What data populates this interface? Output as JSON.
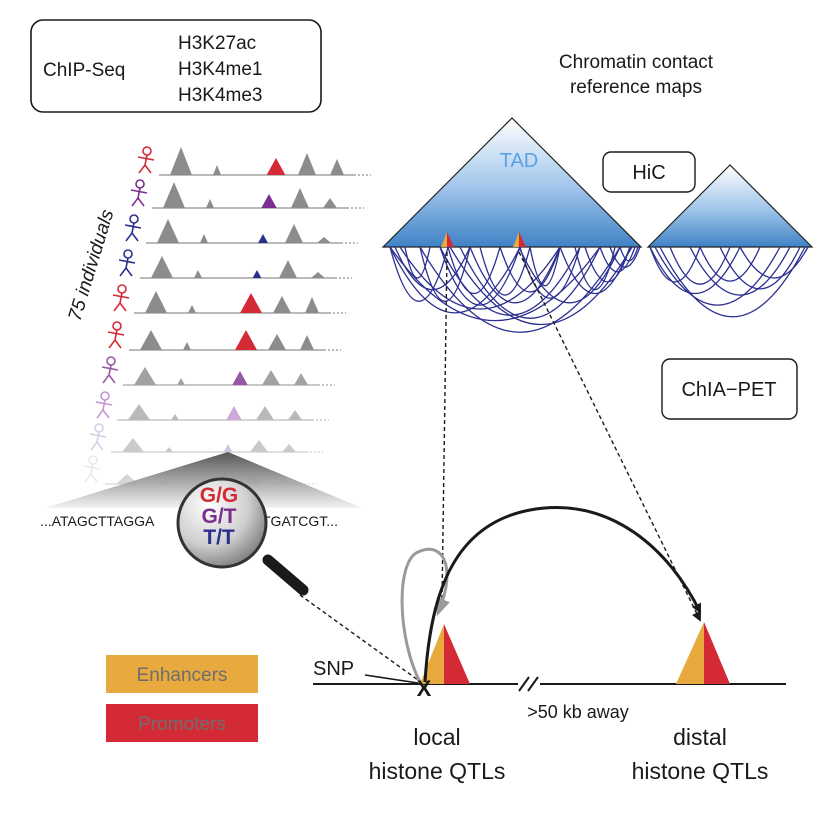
{
  "chipseq": {
    "label": "ChIP-Seq",
    "marks": [
      "H3K27ac",
      "H3K4me1",
      "H3K4me3"
    ]
  },
  "individuals_label": "75 individuals",
  "contact_maps": {
    "title_line1": "Chromatin contact",
    "title_line2": "reference maps",
    "tad_label": "TAD",
    "hic_label": "HiC",
    "chiapet_label": "ChIA−PET"
  },
  "sequence": {
    "left": "...ATAGCTTAGGA",
    "right": "TGATCGT..."
  },
  "genotypes": [
    {
      "label": "G/G",
      "color": "#d42a35"
    },
    {
      "label": "G/T",
      "color": "#7a2f8e"
    },
    {
      "label": "T/T",
      "color": "#2a2f8e"
    }
  ],
  "legend": [
    {
      "label": "Enhancers",
      "color": "#e8a93f"
    },
    {
      "label": "Promoters",
      "color": "#d42a35"
    }
  ],
  "locus": {
    "snp_label": "SNP",
    "snp_marker": "X",
    "distance_label": ">50 kb away",
    "local_line1": "local",
    "local_line2": "histone QTLs",
    "distal_line1": "distal",
    "distal_line2": "histone QTLs"
  },
  "colors": {
    "enhancer": "#e8a93f",
    "promoter": "#d42a35",
    "tad_blue": "#3f82c6",
    "loop_navy": "#2b2f8f",
    "peak_gray": "#8c8c8c",
    "tad_label": "#5aa0e6"
  }
}
